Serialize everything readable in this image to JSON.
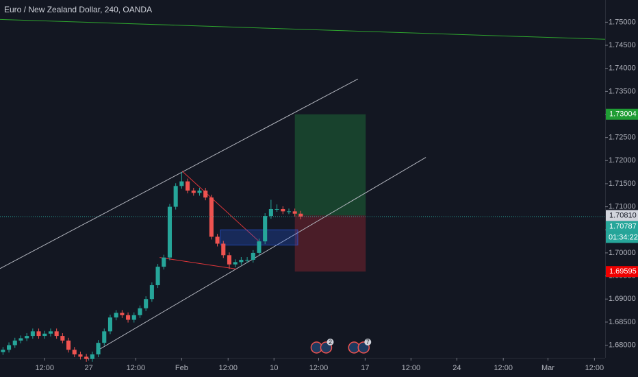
{
  "chart_data": {
    "type": "candlestick",
    "title": "Euro / New Zealand Dollar, 240, OANDA",
    "up_color": "#26a69a",
    "down_color": "#ef5350",
    "xlim": [
      -0.5,
      101.1
    ],
    "ylim": [
      1.67726,
      1.75481
    ],
    "xticks": [
      {
        "value": 7,
        "label": "12:00"
      },
      {
        "value": 14.4,
        "label": "27"
      },
      {
        "value": 22.3,
        "label": "12:00"
      },
      {
        "value": 30,
        "label": "Feb"
      },
      {
        "value": 37.8,
        "label": "12:00"
      },
      {
        "value": 45.5,
        "label": "10"
      },
      {
        "value": 53,
        "label": "12:00"
      },
      {
        "value": 60.8,
        "label": "17"
      },
      {
        "value": 68.5,
        "label": "12:00"
      },
      {
        "value": 76.2,
        "label": "24"
      },
      {
        "value": 84,
        "label": "12:00"
      },
      {
        "value": 91.5,
        "label": "Mar"
      },
      {
        "value": 99.3,
        "label": "12:00"
      }
    ],
    "yticks": [
      {
        "value": 1.68,
        "label": "1.68000"
      },
      {
        "value": 1.685,
        "label": "1.68500"
      },
      {
        "value": 1.69,
        "label": "1.69000"
      },
      {
        "value": 1.695,
        "label": "1.69500"
      },
      {
        "value": 1.7,
        "label": "1.70000"
      },
      {
        "value": 1.705,
        "label": "1.70500"
      },
      {
        "value": 1.71,
        "label": "1.71000"
      },
      {
        "value": 1.715,
        "label": "1.71500"
      },
      {
        "value": 1.72,
        "label": "1.72000"
      },
      {
        "value": 1.725,
        "label": "1.72500"
      },
      {
        "value": 1.73,
        "label": "1.73000"
      },
      {
        "value": 1.735,
        "label": "1.73500"
      },
      {
        "value": 1.74,
        "label": "1.74000"
      },
      {
        "value": 1.745,
        "label": "1.74500"
      },
      {
        "value": 1.75,
        "label": "1.75000"
      }
    ],
    "open": [
      1.6785,
      1.679,
      1.68,
      1.681,
      1.6815,
      1.682,
      1.683,
      1.682,
      1.6825,
      1.683,
      1.682,
      1.681,
      1.679,
      1.678,
      1.6775,
      1.677,
      1.678,
      1.6805,
      1.683,
      1.686,
      1.687,
      1.6865,
      1.6855,
      1.6865,
      1.688,
      1.69,
      1.693,
      1.697,
      1.699,
      1.71,
      1.7145,
      1.7155,
      1.7135,
      1.713,
      1.7135,
      1.712,
      1.7035,
      1.702,
      1.6995,
      1.6975,
      1.698,
      1.6985,
      1.6985,
      1.7,
      1.7025,
      1.708,
      1.7095,
      1.7095,
      1.709,
      1.709,
      1.7085
    ],
    "high": [
      1.6796,
      1.6806,
      1.6816,
      1.6821,
      1.6826,
      1.6836,
      1.6836,
      1.6831,
      1.6836,
      1.6836,
      1.6826,
      1.6816,
      1.6796,
      1.6786,
      1.6781,
      1.6786,
      1.6811,
      1.6836,
      1.6866,
      1.6876,
      1.6876,
      1.6871,
      1.6871,
      1.6886,
      1.6906,
      1.6936,
      1.6976,
      1.6996,
      1.7106,
      1.7151,
      1.7175,
      1.7161,
      1.7141,
      1.7141,
      1.7141,
      1.7126,
      1.7041,
      1.7026,
      1.7001,
      1.6986,
      1.6991,
      1.6991,
      1.7006,
      1.7031,
      1.7086,
      1.7115,
      1.7105,
      1.7101,
      1.7096,
      1.7096,
      1.7091
    ],
    "low": [
      1.6779,
      1.6784,
      1.6794,
      1.6804,
      1.6809,
      1.6814,
      1.6814,
      1.6814,
      1.6819,
      1.6814,
      1.6804,
      1.6784,
      1.6774,
      1.6769,
      1.6764,
      1.6764,
      1.6774,
      1.6799,
      1.6824,
      1.6854,
      1.6859,
      1.6849,
      1.6849,
      1.6859,
      1.6874,
      1.6894,
      1.6924,
      1.6964,
      1.6984,
      1.7094,
      1.7139,
      1.7129,
      1.7124,
      1.7124,
      1.7114,
      1.7029,
      1.7014,
      1.6989,
      1.6965,
      1.6969,
      1.6974,
      1.6979,
      1.6979,
      1.6994,
      1.7019,
      1.7074,
      1.7089,
      1.7084,
      1.7084,
      1.7079,
      1.70727
    ],
    "close": [
      1.679,
      1.68,
      1.681,
      1.6815,
      1.682,
      1.683,
      1.682,
      1.6825,
      1.683,
      1.682,
      1.681,
      1.679,
      1.678,
      1.6775,
      1.677,
      1.678,
      1.6805,
      1.683,
      1.686,
      1.687,
      1.6865,
      1.6855,
      1.6865,
      1.688,
      1.69,
      1.693,
      1.697,
      1.699,
      1.71,
      1.7145,
      1.7155,
      1.7135,
      1.713,
      1.7135,
      1.712,
      1.7035,
      1.702,
      1.6995,
      1.6975,
      1.698,
      1.6985,
      1.6985,
      1.7,
      1.7025,
      1.708,
      1.7095,
      1.7095,
      1.709,
      1.709,
      1.7085,
      1.70787
    ],
    "lines": [
      {
        "color": "#2ea52e",
        "x": [
          -0.5,
          101.1
        ],
        "y": [
          1.7506,
          1.7463
        ]
      },
      {
        "color": "#b2b5be",
        "x": [
          -0.5,
          59.6
        ],
        "y": [
          1.6966,
          1.7377
        ]
      },
      {
        "color": "#b2b5be",
        "x": [
          16.2,
          71
        ],
        "y": [
          1.6791,
          1.7207
        ]
      },
      {
        "color": "#e0363a",
        "x": [
          30.1,
          42.9
        ],
        "y": [
          1.7177,
          1.7026
        ]
      },
      {
        "color": "#e0363a",
        "x": [
          26.3,
          39.2
        ],
        "y": [
          1.699,
          1.6965
        ]
      }
    ],
    "box": {
      "x": [
        36.5,
        49.5
      ],
      "y": [
        1.705,
        1.7017
      ],
      "color": "#2962ff"
    },
    "position": {
      "x": [
        49,
        60.9
      ],
      "entry": 1.7081,
      "target": 1.73004,
      "stop": 1.69595,
      "entry_label": "1.70810",
      "target_label": "1.73004",
      "stop_label": "1.69595"
    },
    "last_price": {
      "value": 1.70787,
      "label": "1.70787",
      "countdown": "01:34:22",
      "color": "#26a69a"
    },
    "events": [
      {
        "x": 53.8,
        "count": "2"
      },
      {
        "x": 60.1,
        "count": "7"
      }
    ]
  }
}
